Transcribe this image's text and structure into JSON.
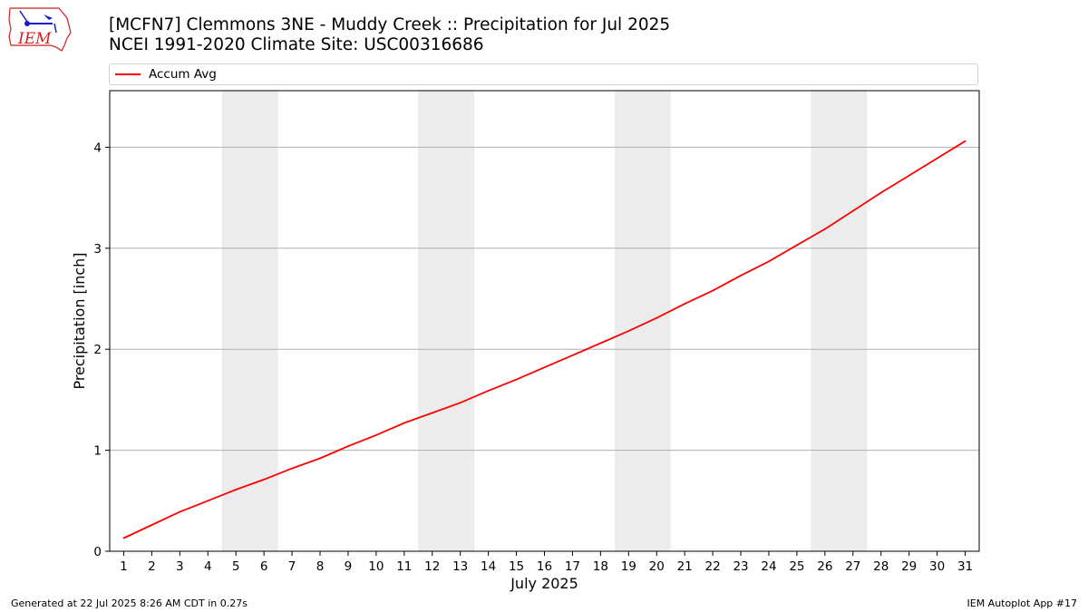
{
  "header": {
    "title_line1": "[MCFN7] Clemmons 3NE - Muddy Creek :: Precipitation for Jul 2025",
    "title_line2": "NCEI 1991-2020 Climate Site: USC00316686",
    "logo_text": "IEM"
  },
  "footer": {
    "generated": "Generated at 22 Jul 2025 8:26 AM CDT in 0.27s",
    "app": "IEM Autoplot App #17"
  },
  "colors": {
    "series": "#ff0000",
    "weekend_band": "#ececec",
    "grid": "#b0b0b0",
    "logo": "#cc2222"
  },
  "chart_data": {
    "type": "line",
    "title": "[MCFN7] Clemmons 3NE - Muddy Creek :: Precipitation for Jul 2025",
    "subtitle": "NCEI 1991-2020 Climate Site: USC00316686",
    "xlabel": "July 2025",
    "ylabel": "Precipitation [inch]",
    "xlim": [
      0.5,
      31.5
    ],
    "ylim": [
      0,
      4.56
    ],
    "yticks": [
      0,
      1,
      2,
      3,
      4
    ],
    "x": [
      1,
      2,
      3,
      4,
      5,
      6,
      7,
      8,
      9,
      10,
      11,
      12,
      13,
      14,
      15,
      16,
      17,
      18,
      19,
      20,
      21,
      22,
      23,
      24,
      25,
      26,
      27,
      28,
      29,
      30,
      31
    ],
    "series": [
      {
        "name": "Accum Avg",
        "values": [
          0.13,
          0.26,
          0.39,
          0.5,
          0.61,
          0.71,
          0.82,
          0.92,
          1.04,
          1.15,
          1.27,
          1.37,
          1.47,
          1.59,
          1.7,
          1.82,
          1.94,
          2.06,
          2.18,
          2.31,
          2.45,
          2.58,
          2.73,
          2.87,
          3.03,
          3.19,
          3.37,
          3.55,
          3.72,
          3.89,
          4.06
        ]
      }
    ],
    "weekend_bands": [
      [
        4.5,
        6.5
      ],
      [
        11.5,
        13.5
      ],
      [
        18.5,
        20.5
      ],
      [
        25.5,
        27.5
      ]
    ],
    "grid": "horizontal",
    "legend": "top"
  }
}
